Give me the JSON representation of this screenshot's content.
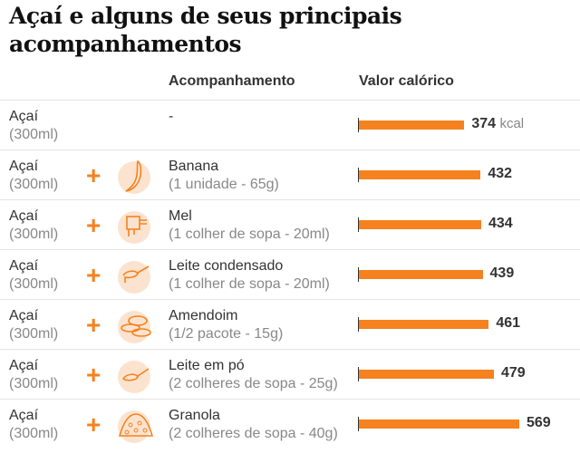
{
  "chart_data": {
    "type": "bar",
    "title": "Açaí e alguns de seus principais acompanhamentos",
    "column_headers": [
      "Acompanhamento",
      "Valor calórico"
    ],
    "unit": "kcal",
    "colors": {
      "bar": "#f5821f",
      "icon_bg": "#fce3cf"
    },
    "rows": [
      {
        "base": "Açaí",
        "base_qty": "(300ml)",
        "plus": "",
        "icon": "",
        "item": "-",
        "qty": "",
        "value": 374
      },
      {
        "base": "Açaí",
        "base_qty": "(300ml)",
        "plus": "+",
        "icon": "banana-icon",
        "item": "Banana",
        "qty": "(1 unidade - 65g)",
        "value": 432
      },
      {
        "base": "Açaí",
        "base_qty": "(300ml)",
        "plus": "+",
        "icon": "honey-icon",
        "item": "Mel",
        "qty": "(1 colher de sopa - 20ml)",
        "value": 434
      },
      {
        "base": "Açaí",
        "base_qty": "(300ml)",
        "plus": "+",
        "icon": "condensed-milk-spoon-icon",
        "item": "Leite condensado",
        "qty": "(1 colher de sopa - 20ml)",
        "value": 439
      },
      {
        "base": "Açaí",
        "base_qty": "(300ml)",
        "plus": "+",
        "icon": "peanut-icon",
        "item": "Amendoim",
        "qty": "(1/2 pacote - 15g)",
        "value": 461
      },
      {
        "base": "Açaí",
        "base_qty": "(300ml)",
        "plus": "+",
        "icon": "powdered-milk-spoon-icon",
        "item": "Leite em pó",
        "qty": "(2 colheres de sopa - 25g)",
        "value": 479
      },
      {
        "base": "Açaí",
        "base_qty": "(300ml)",
        "plus": "+",
        "icon": "granola-icon",
        "item": "Granola",
        "qty": "(2 colheres de sopa - 40g)",
        "value": 569
      }
    ]
  }
}
